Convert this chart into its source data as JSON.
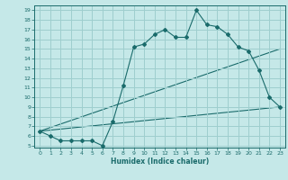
{
  "xlabel": "Humidex (Indice chaleur)",
  "xlim": [
    -0.5,
    23.5
  ],
  "ylim": [
    4.8,
    19.5
  ],
  "yticks": [
    5,
    6,
    7,
    8,
    9,
    10,
    11,
    12,
    13,
    14,
    15,
    16,
    17,
    18,
    19
  ],
  "xticks": [
    0,
    1,
    2,
    3,
    4,
    5,
    6,
    7,
    8,
    9,
    10,
    11,
    12,
    13,
    14,
    15,
    16,
    17,
    18,
    19,
    20,
    21,
    22,
    23
  ],
  "bg_color": "#c5e8e8",
  "grid_color": "#9ecece",
  "line_color": "#1a6b6b",
  "line1_x": [
    0,
    1,
    2,
    3,
    4,
    5,
    6,
    7,
    8,
    9,
    10,
    11,
    12,
    13,
    14,
    15,
    16,
    17,
    18,
    19,
    20,
    21,
    22,
    23
  ],
  "line1_y": [
    6.5,
    6.0,
    5.5,
    5.5,
    5.5,
    5.5,
    5.0,
    7.5,
    11.2,
    15.2,
    15.5,
    16.5,
    17.0,
    16.2,
    16.2,
    19.0,
    17.5,
    17.3,
    16.5,
    15.2,
    14.8,
    12.8,
    10.0,
    9.0
  ],
  "line2_x": [
    0,
    23
  ],
  "line2_y": [
    6.5,
    9.0
  ],
  "line3_x": [
    0,
    23
  ],
  "line3_y": [
    6.5,
    15.0
  ]
}
